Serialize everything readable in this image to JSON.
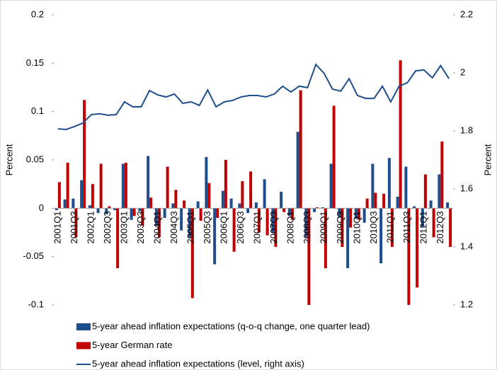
{
  "chart_data": {
    "type": "bar",
    "categories": [
      "2001Q1",
      null,
      "2001Q3",
      null,
      "2002Q1",
      null,
      "2002Q3",
      null,
      "2003Q1",
      null,
      "2003Q3",
      null,
      "2004Q1",
      null,
      "2004Q3",
      null,
      "2005Q1",
      null,
      "2005Q3",
      null,
      "2006Q1",
      null,
      "2006Q3",
      null,
      "2007Q1",
      null,
      "2007Q3",
      null,
      "2008Q1",
      null,
      "2008Q3",
      null,
      "2009Q1",
      null,
      "2009Q3",
      null,
      "2010Q1",
      null,
      "2010Q3",
      null,
      "2011Q1",
      null,
      "2011Q3",
      null,
      "2012Q1",
      null,
      "2012Q3",
      null
    ],
    "series": [
      {
        "name": "5-year ahead inflation expectations (q-o-q change, one quarter lead)",
        "type": "bar",
        "color": "#1f4e8c",
        "values": [
          -0.002,
          0.009,
          0.01,
          0.029,
          0.003,
          -0.005,
          -0.006,
          -0.002,
          0.046,
          -0.012,
          -0.003,
          0.054,
          -0.018,
          -0.01,
          0.005,
          -0.023,
          -0.03,
          0.007,
          0.053,
          -0.058,
          0.018,
          0.01,
          0.005,
          -0.005,
          0.006,
          0.03,
          -0.025,
          0.017,
          -0.008,
          0.079,
          -0.03,
          -0.004,
          0.001,
          0.046,
          -0.009,
          -0.062,
          -0.011,
          -0.015,
          0.046,
          -0.057,
          0.052,
          0.012,
          0.043,
          0.002,
          -0.02,
          0.008,
          0.035,
          0.006
        ]
      },
      {
        "name": "5-year German rate",
        "type": "bar",
        "color": "#c00000",
        "values": [
          0.027,
          0.047,
          -0.03,
          0.112,
          0.025,
          0.046,
          0.002,
          -0.062,
          0.047,
          -0.008,
          -0.018,
          0.011,
          -0.03,
          0.043,
          0.019,
          0.008,
          -0.093,
          -0.013,
          0.026,
          -0.01,
          0.05,
          -0.045,
          0.028,
          0.038,
          -0.025,
          -0.028,
          -0.04,
          -0.004,
          -0.012,
          0.122,
          -0.103,
          0.001,
          -0.062,
          0.106,
          -0.04,
          -0.02,
          -0.012,
          0.01,
          0.016,
          0.015,
          -0.04,
          0.153,
          -0.103,
          -0.082,
          0.035,
          -0.03,
          0.069,
          -0.04
        ]
      },
      {
        "name": "5-year ahead inflation expectations (level, right axis)",
        "type": "line",
        "axis": "y2",
        "color": "#1f4e8c",
        "values": [
          1.807,
          1.805,
          1.815,
          1.827,
          1.856,
          1.859,
          1.854,
          1.856,
          1.9,
          1.883,
          1.883,
          1.939,
          1.924,
          1.917,
          1.927,
          1.895,
          1.9,
          1.888,
          1.941,
          1.883,
          1.9,
          1.905,
          1.917,
          1.922,
          1.922,
          1.917,
          1.927,
          1.954,
          1.934,
          1.954,
          1.949,
          2.029,
          1.998,
          1.944,
          1.937,
          1.98,
          1.922,
          1.912,
          1.912,
          1.954,
          1.9,
          1.954,
          1.966,
          2.007,
          2.01,
          1.983,
          2.025,
          1.98
        ]
      }
    ],
    "ylabel": "Percent",
    "y2label": "Percent",
    "ylim": [
      -0.1,
      0.2
    ],
    "yticks": [
      -0.1,
      -0.05,
      0,
      0.05,
      0.1,
      0.15,
      0.2
    ],
    "y2lim": [
      1.2,
      2.2
    ],
    "y2ticks": [
      1.2,
      1.4,
      1.6,
      1.8,
      2,
      2.2
    ],
    "legend": "bottom"
  }
}
